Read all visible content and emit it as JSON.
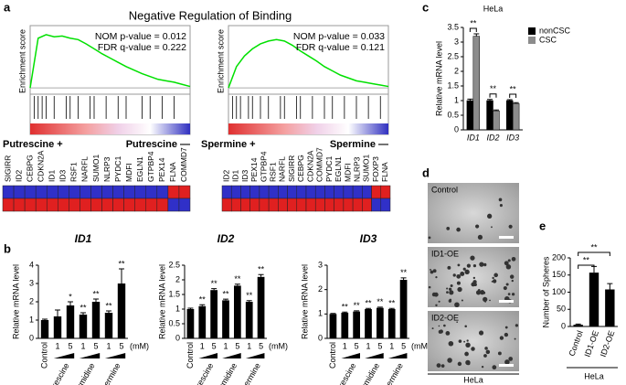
{
  "panel_labels": [
    "a",
    "b",
    "c",
    "d",
    "e"
  ],
  "title": "Negative Regulation of Binding",
  "chart_data": [
    {
      "type": "gsea",
      "ylabel": "Enrichment score",
      "stats": [
        "NOM p-value = 0.012",
        "FDR q-value = 0.222"
      ],
      "x": [
        0,
        1,
        2,
        3,
        4,
        5,
        6,
        7,
        8,
        9,
        10,
        11,
        12,
        13,
        14,
        15,
        16,
        17,
        18,
        19,
        20
      ],
      "values": [
        0,
        0.7,
        0.75,
        0.72,
        0.73,
        0.7,
        0.68,
        0.62,
        0.55,
        0.48,
        0.42,
        0.36,
        0.3,
        0.25,
        0.2,
        0.16,
        0.12,
        0.1,
        0.08,
        0.05,
        0.02
      ],
      "hits": [
        0.5,
        1,
        1.5,
        2,
        3,
        4.5,
        5,
        6,
        7.5,
        8,
        9.5,
        11,
        12,
        14,
        15,
        16.5,
        18
      ],
      "xlim": [
        0,
        20
      ],
      "ylim": [
        -0.05,
        0.8
      ],
      "color": "#00e000",
      "low_label": "Putrescine +",
      "high_label": "Putrescine —"
    },
    {
      "type": "gsea",
      "ylabel": "Enrichment score",
      "stats": [
        "NOM p-value = 0.033",
        "FDR q-value = 0.121"
      ],
      "x": [
        0,
        1,
        2,
        3,
        4,
        5,
        6,
        7,
        8,
        9,
        10,
        11,
        12,
        13,
        14,
        15,
        16,
        17,
        18,
        19,
        20
      ],
      "values": [
        0,
        0.3,
        0.45,
        0.55,
        0.62,
        0.66,
        0.68,
        0.66,
        0.6,
        0.52,
        0.45,
        0.38,
        0.3,
        0.24,
        0.18,
        0.14,
        0.1,
        0.08,
        0.06,
        0.04,
        0.02
      ],
      "hits": [
        0.5,
        1,
        1.5,
        2.5,
        3,
        4,
        5,
        6.5,
        7,
        8.5,
        9,
        10.5,
        12,
        13,
        14.5,
        16,
        17.5,
        19
      ],
      "xlim": [
        0,
        20
      ],
      "ylim": [
        -0.05,
        0.8
      ],
      "color": "#00e000",
      "low_label": "Spermine +",
      "high_label": "Spermine —"
    },
    {
      "type": "bar",
      "title": "ID1",
      "ylabel": "Relative mRNA level",
      "categories": [
        "Control",
        "1",
        "5",
        "1",
        "5",
        "1",
        "5"
      ],
      "groups": [
        "Putrescine",
        "Spermidine",
        "Spermine"
      ],
      "unit": "(mM)",
      "values": [
        1.0,
        1.2,
        1.8,
        1.3,
        2.0,
        1.4,
        3.0
      ],
      "errors": [
        0.05,
        0.35,
        0.2,
        0.1,
        0.15,
        0.1,
        0.8
      ],
      "annotations": [
        null,
        null,
        "*",
        "**",
        "**",
        "**",
        "**"
      ],
      "color": "#000000",
      "ylim": [
        0,
        4
      ],
      "yticks": [
        0,
        1,
        2,
        3,
        4
      ]
    },
    {
      "type": "bar",
      "title": "ID2",
      "ylabel": "Relative mRNA level",
      "categories": [
        "Control",
        "1",
        "5",
        "1",
        "5",
        "1",
        "5"
      ],
      "groups": [
        "Putrescine",
        "Spermidine",
        "Spermine"
      ],
      "unit": "(mM)",
      "values": [
        1.0,
        1.1,
        1.65,
        1.3,
        1.8,
        1.25,
        2.1
      ],
      "errors": [
        0.03,
        0.05,
        0.05,
        0.04,
        0.05,
        0.04,
        0.08
      ],
      "annotations": [
        null,
        "**",
        "**",
        "**",
        "**",
        "**",
        "**"
      ],
      "color": "#000000",
      "ylim": [
        0,
        2.5
      ],
      "yticks": [
        0,
        0.5,
        1,
        1.5,
        2,
        2.5
      ]
    },
    {
      "type": "bar",
      "title": "ID3",
      "ylabel": "Relative mRNA level",
      "categories": [
        "Control",
        "1",
        "5",
        "1",
        "5",
        "1",
        "5"
      ],
      "groups": [
        "Putrescine",
        "Spermidine",
        "Spermine"
      ],
      "unit": "(mM)",
      "values": [
        1.0,
        1.05,
        1.1,
        1.2,
        1.25,
        1.2,
        2.4
      ],
      "errors": [
        0.02,
        0.03,
        0.03,
        0.03,
        0.03,
        0.03,
        0.08
      ],
      "annotations": [
        null,
        "**",
        "**",
        "**",
        "**",
        "**",
        "**"
      ],
      "color": "#000000",
      "ylim": [
        0,
        3
      ],
      "yticks": [
        0,
        1,
        2,
        3
      ]
    },
    {
      "type": "grouped-bar",
      "title": "HeLa",
      "ylabel": "Relative mRNA level",
      "categories": [
        "ID1",
        "ID2",
        "ID3"
      ],
      "series": [
        {
          "name": "nonCSC",
          "color": "#000000",
          "values": [
            1.0,
            1.0,
            1.0
          ],
          "errors": [
            0.05,
            0.04,
            0.03
          ]
        },
        {
          "name": "CSC",
          "color": "#8c8c8c",
          "values": [
            3.2,
            0.65,
            0.9
          ],
          "errors": [
            0.08,
            0.03,
            0.03
          ]
        }
      ],
      "annotations": [
        "**",
        "**",
        "**"
      ],
      "ylim": [
        0,
        3.5
      ],
      "yticks": [
        0,
        0.5,
        1,
        1.5,
        2,
        2.5,
        3,
        3.5
      ]
    },
    {
      "type": "bracket-bar",
      "ylabel": "Number of Spheres",
      "xlabel": "HeLa",
      "categories": [
        "Control",
        "ID1-OE",
        "ID2-OE"
      ],
      "values": [
        5,
        157,
        108
      ],
      "errors": [
        2,
        18,
        17
      ],
      "annotations": [
        null,
        "**",
        "**"
      ],
      "color": "#000000",
      "ylim": [
        0,
        200
      ],
      "yticks": [
        0,
        50,
        100,
        150,
        200
      ]
    }
  ],
  "heatmaps": [
    {
      "genes": [
        "SIGIRR",
        "ID2",
        "CEBPG",
        "CDKN2A",
        "ID1",
        "ID3",
        "RSF1",
        "NARFL",
        "SUMO1",
        "NLRP3",
        "PYDC1",
        "MDFI",
        "EGLN1",
        "GTPBP4",
        "PEX14",
        "FLNA",
        "COMMD7"
      ]
    },
    {
      "genes": [
        "ID2",
        "ID1",
        "ID3",
        "PEX14",
        "GTPBP4",
        "RSF1",
        "NARFL",
        "SIGIRR",
        "CEBPG",
        "CDKN2A",
        "COMMD7",
        "PYDC1",
        "EGLN1",
        "MDFI",
        "NLRP3",
        "SUMO1",
        "FOXP3",
        "FLNA"
      ]
    }
  ],
  "images": {
    "labels": [
      "Control",
      "ID1-OE",
      "ID2-OE"
    ],
    "caption": "HeLa"
  }
}
